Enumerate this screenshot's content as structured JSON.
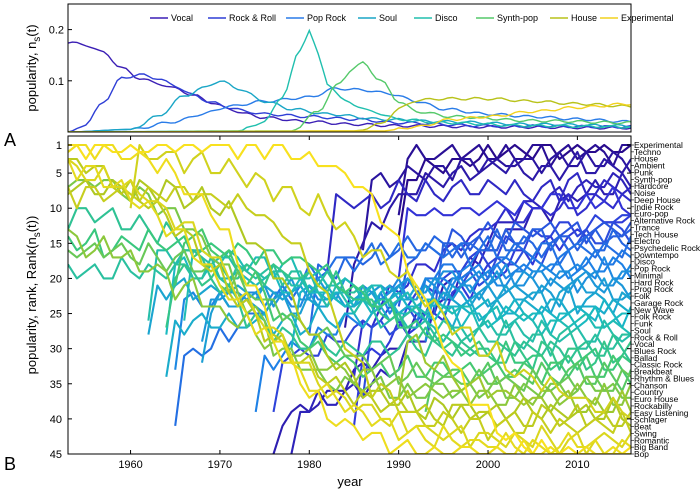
{
  "chart_data": [
    {
      "type": "line",
      "panel_label": "A",
      "ylabel": "popularity, n",
      "ylabel_sub": "s",
      "ylabel_tail": "(t)",
      "xlim": [
        1953,
        2016
      ],
      "ylim": [
        0,
        0.25
      ],
      "yticks": [
        0.1,
        0.2
      ],
      "ytick_labels": [
        "0.1",
        "0.2"
      ],
      "legend_position": "top",
      "series": [
        {
          "name": "Vocal",
          "color": "#3b1fb5",
          "points": [
            [
              1953,
              0.175
            ],
            [
              1955,
              0.17
            ],
            [
              1957,
              0.155
            ],
            [
              1959,
              0.125
            ],
            [
              1961,
              0.105
            ],
            [
              1963,
              0.095
            ],
            [
              1965,
              0.085
            ],
            [
              1967,
              0.072
            ],
            [
              1969,
              0.058
            ],
            [
              1971,
              0.045
            ],
            [
              1973,
              0.035
            ],
            [
              1975,
              0.028
            ],
            [
              1980,
              0.02
            ],
            [
              1985,
              0.015
            ],
            [
              1990,
              0.012
            ],
            [
              2000,
              0.01
            ],
            [
              2016,
              0.008
            ]
          ]
        },
        {
          "name": "Rock & Roll",
          "color": "#2f3fd6",
          "points": [
            [
              1953,
              0.0
            ],
            [
              1955,
              0.015
            ],
            [
              1957,
              0.06
            ],
            [
              1959,
              0.105
            ],
            [
              1961,
              0.112
            ],
            [
              1963,
              0.105
            ],
            [
              1965,
              0.09
            ],
            [
              1967,
              0.072
            ],
            [
              1969,
              0.058
            ],
            [
              1971,
              0.048
            ],
            [
              1973,
              0.04
            ],
            [
              1975,
              0.035
            ],
            [
              1980,
              0.03
            ],
            [
              1985,
              0.025
            ],
            [
              1990,
              0.018
            ],
            [
              2000,
              0.012
            ],
            [
              2016,
              0.01
            ]
          ]
        },
        {
          "name": "Pop Rock",
          "color": "#2a7ce8",
          "points": [
            [
              1953,
              0.0
            ],
            [
              1960,
              0.005
            ],
            [
              1965,
              0.02
            ],
            [
              1968,
              0.035
            ],
            [
              1971,
              0.05
            ],
            [
              1975,
              0.06
            ],
            [
              1980,
              0.068
            ],
            [
              1983,
              0.085
            ],
            [
              1986,
              0.082
            ],
            [
              1989,
              0.075
            ],
            [
              1992,
              0.06
            ],
            [
              1995,
              0.045
            ],
            [
              2000,
              0.035
            ],
            [
              2005,
              0.03
            ],
            [
              2010,
              0.025
            ],
            [
              2016,
              0.02
            ]
          ]
        },
        {
          "name": "Soul",
          "color": "#1aa6c6",
          "points": [
            [
              1953,
              0.0
            ],
            [
              1960,
              0.005
            ],
            [
              1963,
              0.03
            ],
            [
              1966,
              0.07
            ],
            [
              1968,
              0.085
            ],
            [
              1970,
              0.1
            ],
            [
              1972,
              0.085
            ],
            [
              1975,
              0.06
            ],
            [
              1978,
              0.045
            ],
            [
              1982,
              0.035
            ],
            [
              1988,
              0.025
            ],
            [
              1995,
              0.02
            ],
            [
              2005,
              0.015
            ],
            [
              2016,
              0.012
            ]
          ]
        },
        {
          "name": "Disco",
          "color": "#20bfae",
          "points": [
            [
              1953,
              0.0
            ],
            [
              1972,
              0.002
            ],
            [
              1975,
              0.02
            ],
            [
              1977,
              0.07
            ],
            [
              1979,
              0.16
            ],
            [
              1980,
              0.2
            ],
            [
              1981,
              0.15
            ],
            [
              1982,
              0.095
            ],
            [
              1984,
              0.06
            ],
            [
              1987,
              0.04
            ],
            [
              1990,
              0.025
            ],
            [
              1995,
              0.018
            ],
            [
              2005,
              0.012
            ],
            [
              2016,
              0.01
            ]
          ]
        },
        {
          "name": "Synth-pop",
          "color": "#55c96a",
          "points": [
            [
              1953,
              0.0
            ],
            [
              1978,
              0.002
            ],
            [
              1981,
              0.04
            ],
            [
              1983,
              0.09
            ],
            [
              1985,
              0.125
            ],
            [
              1986,
              0.135
            ],
            [
              1988,
              0.1
            ],
            [
              1990,
              0.06
            ],
            [
              1992,
              0.04
            ],
            [
              1996,
              0.03
            ],
            [
              2005,
              0.022
            ],
            [
              2016,
              0.018
            ]
          ]
        },
        {
          "name": "House",
          "color": "#b8c21a",
          "points": [
            [
              1953,
              0.0
            ],
            [
              1985,
              0.002
            ],
            [
              1988,
              0.015
            ],
            [
              1990,
              0.045
            ],
            [
              1992,
              0.062
            ],
            [
              1995,
              0.065
            ],
            [
              2000,
              0.065
            ],
            [
              2005,
              0.06
            ],
            [
              2010,
              0.055
            ],
            [
              2016,
              0.05
            ]
          ]
        },
        {
          "name": "Experimental",
          "color": "#f2d21e",
          "points": [
            [
              1953,
              0.0
            ],
            [
              1988,
              0.002
            ],
            [
              1992,
              0.01
            ],
            [
              1996,
              0.025
            ],
            [
              2000,
              0.03
            ],
            [
              2005,
              0.04
            ],
            [
              2010,
              0.048
            ],
            [
              2016,
              0.055
            ]
          ]
        }
      ]
    },
    {
      "type": "line",
      "panel_label": "B",
      "ylabel": "popularity, rank, Rank(n",
      "ylabel_sub": "s",
      "ylabel_tail": "(t))",
      "xlabel": "year",
      "xlim": [
        1953,
        2016
      ],
      "ylim": [
        45,
        1
      ],
      "y_reversed": true,
      "xticks": [
        1960,
        1970,
        1980,
        1990,
        2000,
        2010
      ],
      "xtick_labels": [
        "1960",
        "1970",
        "1980",
        "1990",
        "2000",
        "2010"
      ],
      "yticks": [
        1,
        5,
        10,
        15,
        20,
        25,
        30,
        35,
        40,
        45
      ],
      "ytick_labels": [
        "1",
        "5",
        "10",
        "15",
        "20",
        "25",
        "30",
        "35",
        "40",
        "45"
      ],
      "genres": [
        "Experimental",
        "Techno",
        "House",
        "Ambient",
        "Punk",
        "Synth-pop",
        "Hardcore",
        "Noise",
        "Deep House",
        "Indie Rock",
        "Euro-pop",
        "Alternative Rock",
        "Trance",
        "Tech House",
        "Electro",
        "Psychedelic Rock",
        "Downtempo",
        "Disco",
        "Pop Rock",
        "Minimal",
        "Hard Rock",
        "Prog Rock",
        "Folk",
        "Garage Rock",
        "New Wave",
        "Folk Rock",
        "Funk",
        "Soul",
        "Rock & Roll",
        "Vocal",
        "Blues Rock",
        "Ballad",
        "Classic Rock",
        "Breakbeat",
        "Rhythm & Blues",
        "Chanson",
        "Country",
        "Euro House",
        "Rockabilly",
        "Easy Listening",
        "Schlager",
        "Beat",
        "Swing",
        "Romantic",
        "Big Band",
        "Bop"
      ],
      "debut_year": [
        1990,
        1990,
        1986,
        1984,
        1976,
        1978,
        1982,
        1985,
        1990,
        1985,
        1976,
        1986,
        1990,
        1994,
        1980,
        1965,
        1992,
        1974,
        1965,
        1993,
        1968,
        1968,
        1962,
        1964,
        1978,
        1964,
        1966,
        1962,
        1953,
        1953,
        1964,
        1953,
        1965,
        1993,
        1953,
        1953,
        1953,
        1990,
        1953,
        1953,
        1953,
        1960,
        1953,
        1953,
        1953,
        1953
      ]
    }
  ]
}
